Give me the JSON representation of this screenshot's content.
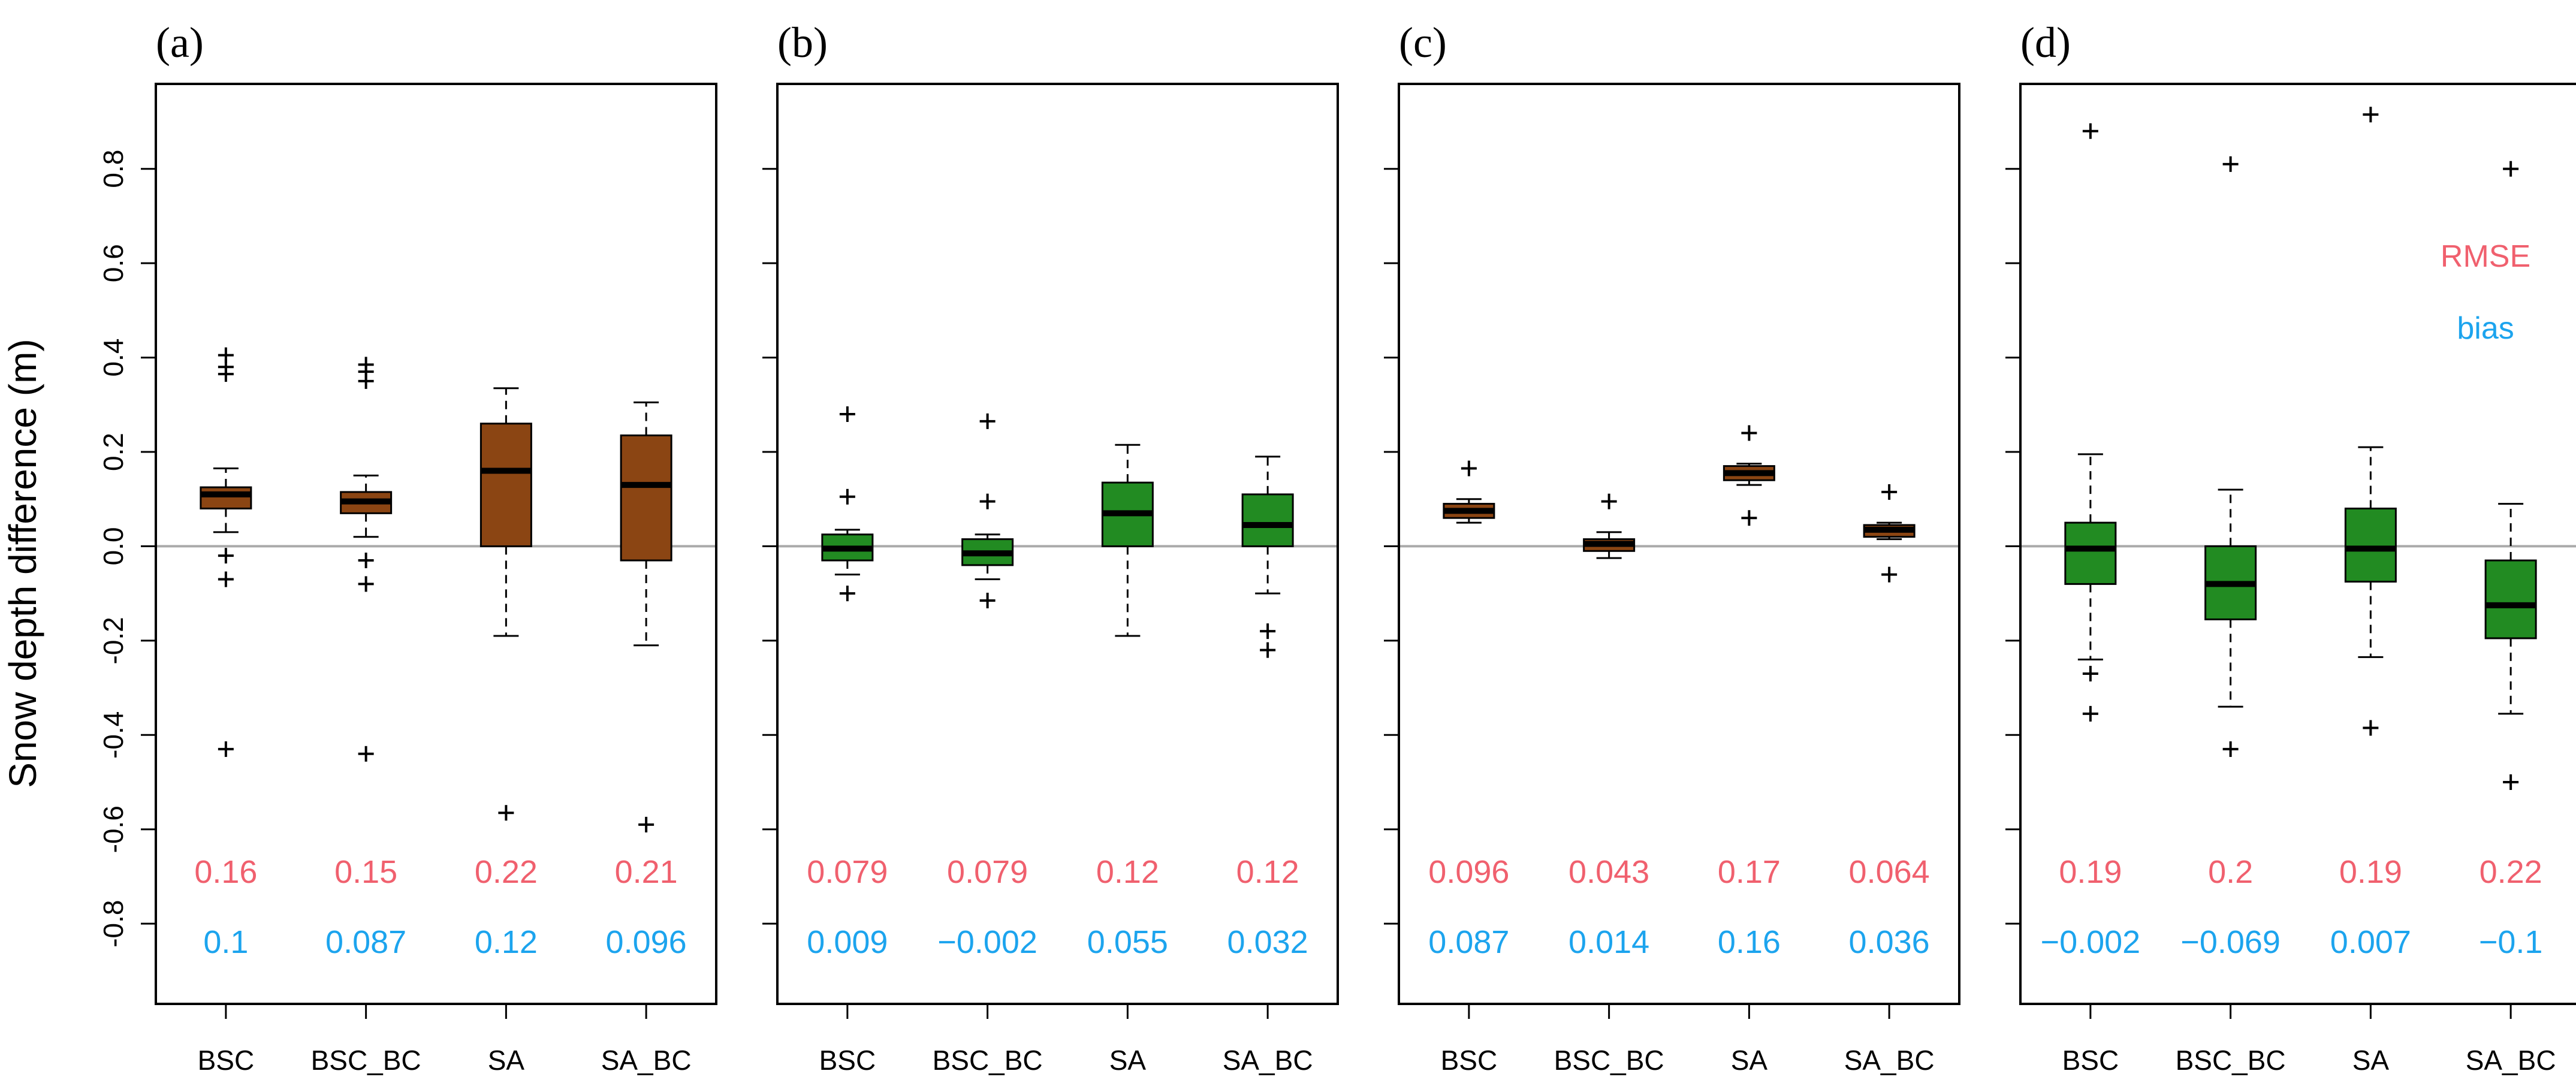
{
  "figure": {
    "ylabel": "Snow depth difference (m)"
  },
  "legend": {
    "rmse_label": "RMSE",
    "bias_label": "bias"
  },
  "colors": {
    "brown": "#8B4513",
    "green": "#228B22",
    "rmse": "#F0606E",
    "bias": "#1CA4EE",
    "zero_line": "#AAAAAA"
  },
  "chart_data": [
    {
      "type": "box",
      "panel": "(a)",
      "ylim": [
        -0.97,
        0.98
      ],
      "yticks": [
        -0.8,
        -0.6,
        -0.4,
        -0.2,
        0.0,
        0.2,
        0.4,
        0.6,
        0.8
      ],
      "yticklabels": [
        "-0.8",
        "-0.6",
        "-0.4",
        "-0.2",
        "0.0",
        "0.2",
        "0.4",
        "0.6",
        "0.8"
      ],
      "categories": [
        "BSC",
        "BSC_BC",
        "SA",
        "SA_BC"
      ],
      "boxes": [
        {
          "color": "brown",
          "q1": 0.08,
          "median": 0.11,
          "q3": 0.125,
          "whisker_low": 0.03,
          "whisker_high": 0.165,
          "outliers": [
            0.405,
            0.38,
            0.365,
            -0.02,
            -0.07,
            -0.43
          ]
        },
        {
          "color": "brown",
          "q1": 0.07,
          "median": 0.095,
          "q3": 0.115,
          "whisker_low": 0.02,
          "whisker_high": 0.15,
          "outliers": [
            0.385,
            0.37,
            0.35,
            -0.03,
            -0.08,
            -0.44
          ]
        },
        {
          "color": "brown",
          "q1": 0.0,
          "median": 0.16,
          "q3": 0.26,
          "whisker_low": -0.19,
          "whisker_high": 0.335,
          "outliers": [
            -0.565
          ]
        },
        {
          "color": "brown",
          "q1": -0.03,
          "median": 0.13,
          "q3": 0.235,
          "whisker_low": -0.21,
          "whisker_high": 0.305,
          "outliers": [
            -0.59
          ]
        }
      ],
      "rmse": [
        "0.16",
        "0.15",
        "0.22",
        "0.21"
      ],
      "bias": [
        "0.1",
        "0.087",
        "0.12",
        "0.096"
      ]
    },
    {
      "type": "box",
      "panel": "(b)",
      "ylim": [
        -0.97,
        0.98
      ],
      "yticks": [
        -0.8,
        -0.6,
        -0.4,
        -0.2,
        0.0,
        0.2,
        0.4,
        0.6,
        0.8
      ],
      "categories": [
        "BSC",
        "BSC_BC",
        "SA",
        "SA_BC"
      ],
      "boxes": [
        {
          "color": "green",
          "q1": -0.03,
          "median": -0.005,
          "q3": 0.025,
          "whisker_low": -0.06,
          "whisker_high": 0.035,
          "outliers": [
            0.28,
            0.105,
            -0.1
          ]
        },
        {
          "color": "green",
          "q1": -0.04,
          "median": -0.015,
          "q3": 0.015,
          "whisker_low": -0.07,
          "whisker_high": 0.025,
          "outliers": [
            0.265,
            0.095,
            -0.115
          ]
        },
        {
          "color": "green",
          "q1": 0.0,
          "median": 0.07,
          "q3": 0.135,
          "whisker_low": -0.19,
          "whisker_high": 0.215,
          "outliers": []
        },
        {
          "color": "green",
          "q1": 0.0,
          "median": 0.045,
          "q3": 0.11,
          "whisker_low": -0.1,
          "whisker_high": 0.19,
          "outliers": [
            -0.18,
            -0.22
          ]
        }
      ],
      "rmse": [
        "0.079",
        "0.079",
        "0.12",
        "0.12"
      ],
      "bias": [
        "0.009",
        "−0.002",
        "0.055",
        "0.032"
      ]
    },
    {
      "type": "box",
      "panel": "(c)",
      "ylim": [
        -0.97,
        0.98
      ],
      "yticks": [
        -0.8,
        -0.6,
        -0.4,
        -0.2,
        0.0,
        0.2,
        0.4,
        0.6,
        0.8
      ],
      "categories": [
        "BSC",
        "BSC_BC",
        "SA",
        "SA_BC"
      ],
      "boxes": [
        {
          "color": "brown",
          "q1": 0.06,
          "median": 0.075,
          "q3": 0.09,
          "whisker_low": 0.05,
          "whisker_high": 0.1,
          "outliers": [
            0.165
          ]
        },
        {
          "color": "brown",
          "q1": -0.01,
          "median": 0.005,
          "q3": 0.015,
          "whisker_low": -0.025,
          "whisker_high": 0.03,
          "outliers": [
            0.095
          ]
        },
        {
          "color": "brown",
          "q1": 0.14,
          "median": 0.155,
          "q3": 0.17,
          "whisker_low": 0.13,
          "whisker_high": 0.175,
          "outliers": [
            0.24,
            0.06
          ]
        },
        {
          "color": "brown",
          "q1": 0.02,
          "median": 0.035,
          "q3": 0.045,
          "whisker_low": 0.015,
          "whisker_high": 0.05,
          "outliers": [
            0.115,
            -0.06
          ]
        }
      ],
      "rmse": [
        "0.096",
        "0.043",
        "0.17",
        "0.064"
      ],
      "bias": [
        "0.087",
        "0.014",
        "0.16",
        "0.036"
      ]
    },
    {
      "type": "box",
      "panel": "(d)",
      "ylim": [
        -0.97,
        0.98
      ],
      "yticks": [
        -0.8,
        -0.6,
        -0.4,
        -0.2,
        0.0,
        0.2,
        0.4,
        0.6,
        0.8
      ],
      "categories": [
        "BSC",
        "BSC_BC",
        "SA",
        "SA_BC"
      ],
      "boxes": [
        {
          "color": "green",
          "q1": -0.08,
          "median": -0.005,
          "q3": 0.05,
          "whisker_low": -0.24,
          "whisker_high": 0.195,
          "outliers": [
            0.88,
            -0.27,
            -0.355
          ]
        },
        {
          "color": "green",
          "q1": -0.155,
          "median": -0.08,
          "q3": 0.0,
          "whisker_low": -0.34,
          "whisker_high": 0.12,
          "outliers": [
            0.81,
            -0.43
          ]
        },
        {
          "color": "green",
          "q1": -0.075,
          "median": -0.005,
          "q3": 0.08,
          "whisker_low": -0.235,
          "whisker_high": 0.21,
          "outliers": [
            0.915,
            -0.385
          ]
        },
        {
          "color": "green",
          "q1": -0.195,
          "median": -0.125,
          "q3": -0.03,
          "whisker_low": -0.355,
          "whisker_high": 0.09,
          "outliers": [
            0.8,
            -0.5
          ]
        }
      ],
      "rmse": [
        "0.19",
        "0.2",
        "0.19",
        "0.22"
      ],
      "bias": [
        "−0.002",
        "−0.069",
        "0.007",
        "−0.1"
      ],
      "legend_text": [
        "RMSE",
        "bias"
      ]
    }
  ]
}
